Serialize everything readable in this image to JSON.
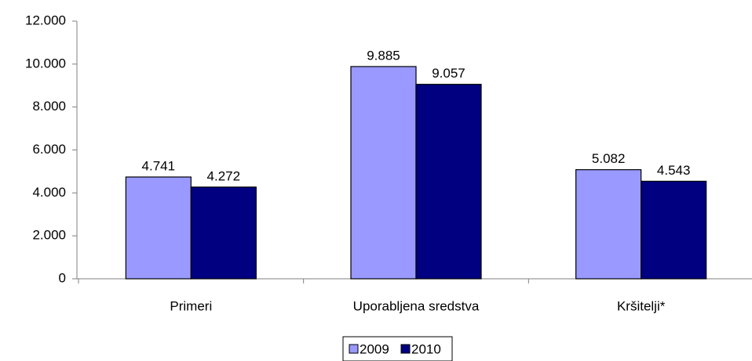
{
  "chart_data": {
    "type": "bar",
    "categories": [
      "Primeri",
      "Uporabljena sredstva",
      "Kršitelji*"
    ],
    "series": [
      {
        "name": "2009",
        "color": "#9999ff",
        "values": [
          4741,
          9885,
          5082
        ],
        "value_labels": [
          "4.741",
          "9.885",
          "5.082"
        ]
      },
      {
        "name": "2010",
        "color": "#000080",
        "values": [
          4272,
          9057,
          4543
        ],
        "value_labels": [
          "4.272",
          "9.057",
          "4.543"
        ]
      }
    ],
    "ylim": [
      0,
      12000
    ],
    "yticks": [
      0,
      {
        "value": 2000,
        "label": "2.000"
      },
      {
        "value": 4000,
        "label": "4.000"
      },
      {
        "value": 6000,
        "label": "6.000"
      },
      {
        "value": 8000,
        "label": "8.000"
      },
      {
        "value": 10000,
        "label": "10.000"
      },
      {
        "value": 12000,
        "label": "12.000"
      }
    ],
    "grid": false,
    "legend": "bottom"
  }
}
